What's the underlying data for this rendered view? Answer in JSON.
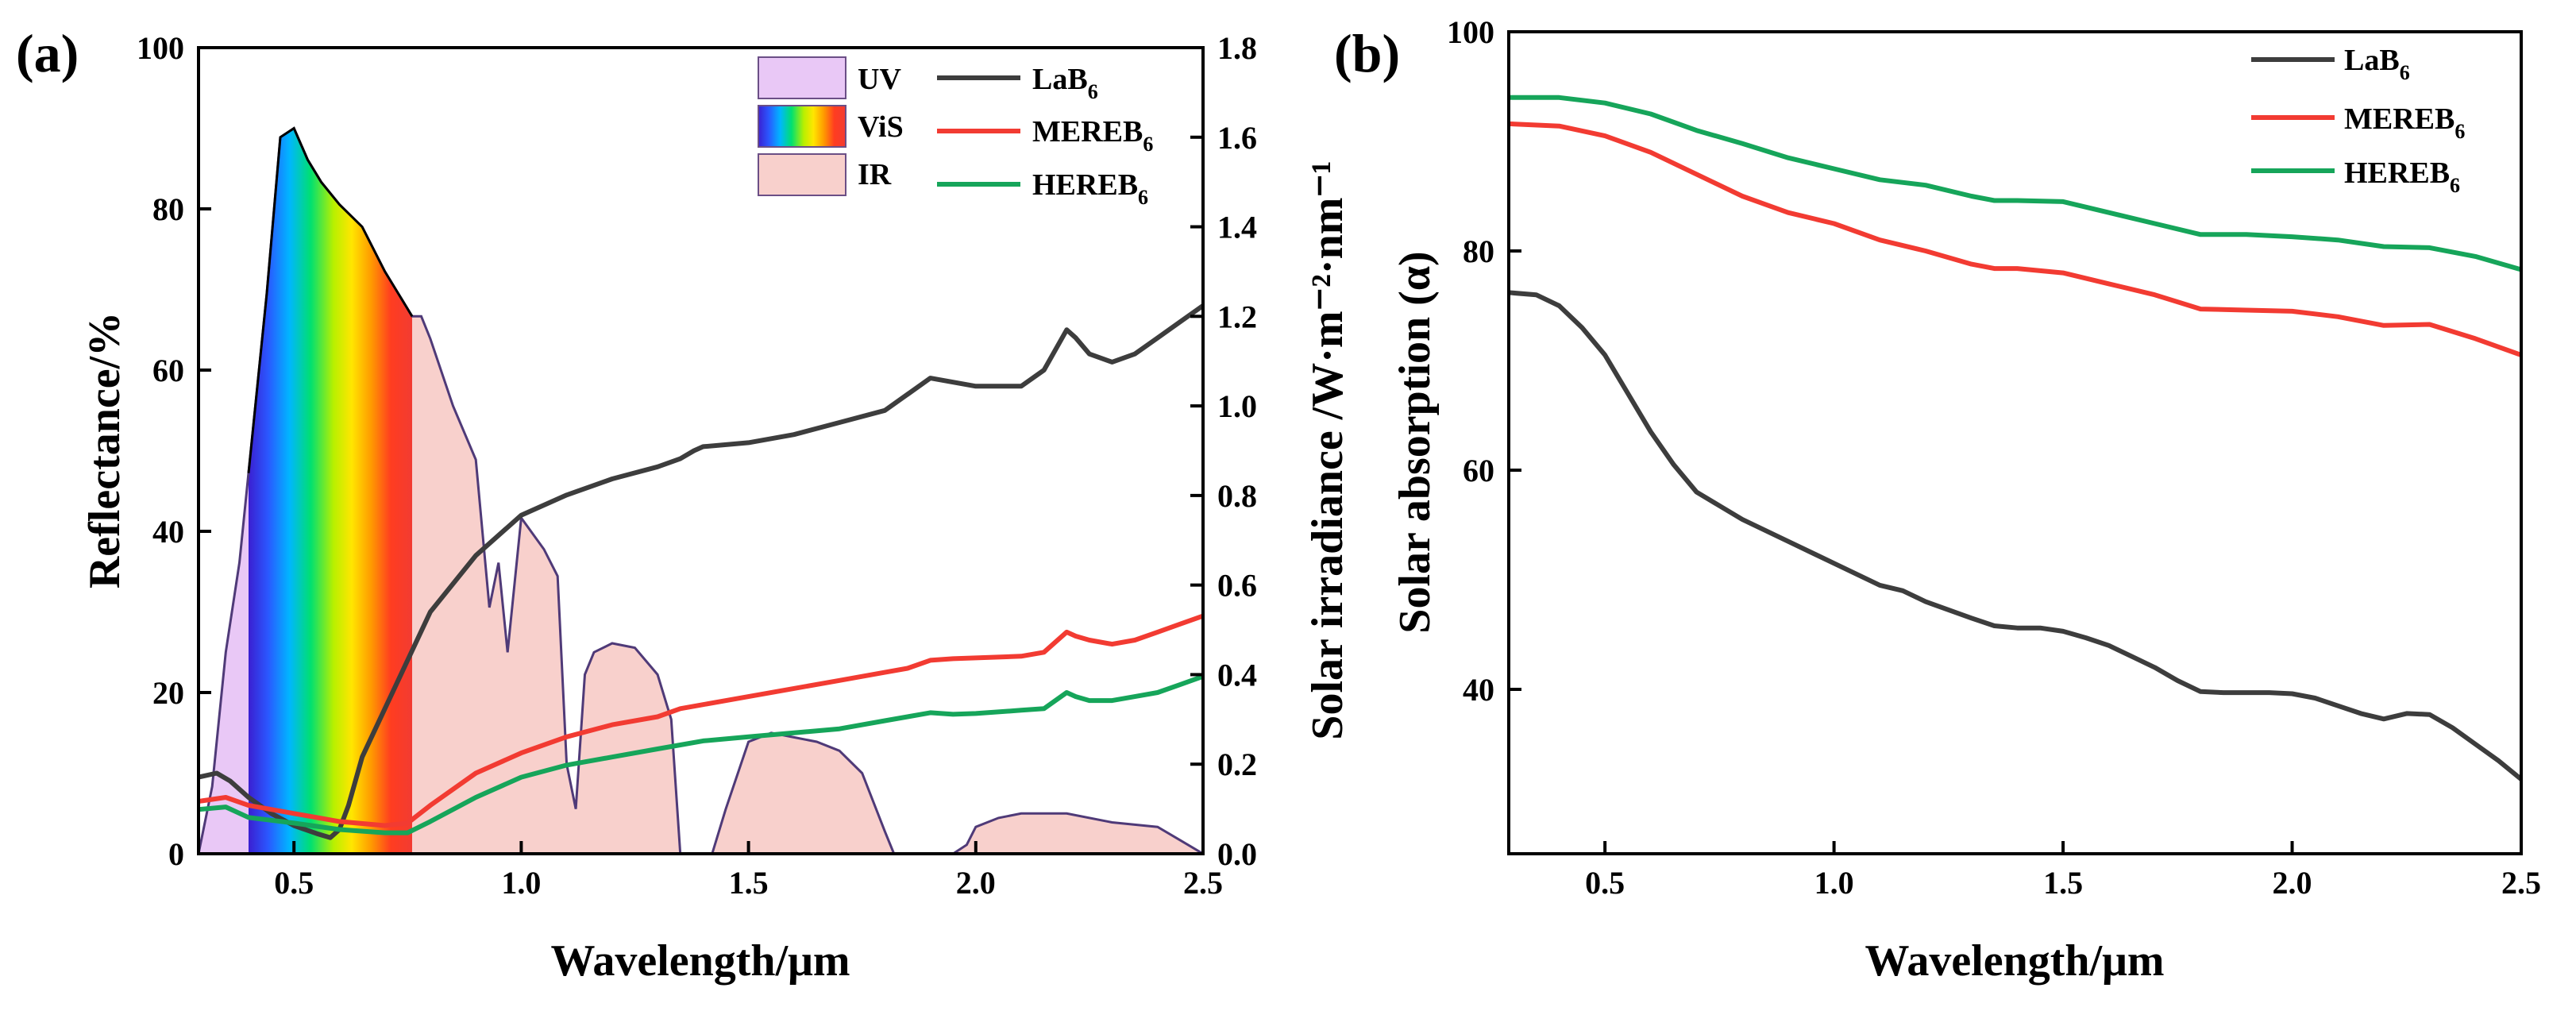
{
  "chart_data": [
    {
      "panel_label": "(a)",
      "type": "line",
      "xlabel": "Wavelength/μm",
      "ylabel": "Reflectance/%",
      "y2label": "Solar irradiance /W·m⁻²·nm⁻¹",
      "xlim": [
        0.29,
        2.5
      ],
      "ylim": [
        0,
        100
      ],
      "y2lim": [
        0,
        1.8
      ],
      "xticks": [
        0.5,
        1.0,
        1.5,
        2.0,
        2.5
      ],
      "xtick_labels": [
        "0.5",
        "1.0",
        "1.5",
        "2.0",
        "2.5"
      ],
      "yticks": [
        0,
        20,
        40,
        60,
        80,
        100
      ],
      "ytick_labels": [
        "0",
        "20",
        "40",
        "60",
        "80",
        "100"
      ],
      "y2ticks": [
        0,
        0.2,
        0.4,
        0.6,
        0.8,
        1.0,
        1.2,
        1.4,
        1.6,
        1.8
      ],
      "y2tick_labels": [
        "0.0",
        "0.2",
        "0.4",
        "0.6",
        "0.8",
        "1.0",
        "1.2",
        "1.4",
        "1.6",
        "1.8"
      ],
      "bands": [
        {
          "name": "UV",
          "range": [
            0.29,
            0.4
          ],
          "color": "#e9c8f6"
        },
        {
          "name": "ViS",
          "range": [
            0.4,
            0.76
          ],
          "color": "rainbow"
        },
        {
          "name": "IR",
          "range": [
            0.76,
            2.5
          ],
          "color": "#f8d0cc"
        }
      ],
      "irradiance_series": {
        "name": "Solar irradiance",
        "color": "#4f3a78",
        "x": [
          0.29,
          0.32,
          0.35,
          0.38,
          0.41,
          0.44,
          0.47,
          0.5,
          0.53,
          0.56,
          0.6,
          0.65,
          0.7,
          0.73,
          0.76,
          0.78,
          0.8,
          0.85,
          0.9,
          0.93,
          0.95,
          0.97,
          1.0,
          1.05,
          1.08,
          1.1,
          1.12,
          1.14,
          1.16,
          1.2,
          1.25,
          1.3,
          1.33,
          1.35,
          1.38,
          1.42,
          1.45,
          1.5,
          1.55,
          1.6,
          1.65,
          1.7,
          1.75,
          1.8,
          1.82,
          1.95,
          1.98,
          2.0,
          2.05,
          2.1,
          2.2,
          2.3,
          2.4,
          2.45,
          2.5
        ],
        "y": [
          0.0,
          0.15,
          0.45,
          0.65,
          0.95,
          1.25,
          1.6,
          1.62,
          1.55,
          1.5,
          1.45,
          1.4,
          1.3,
          1.25,
          1.2,
          1.2,
          1.15,
          1.0,
          0.88,
          0.55,
          0.65,
          0.45,
          0.75,
          0.68,
          0.62,
          0.2,
          0.1,
          0.4,
          0.45,
          0.47,
          0.46,
          0.4,
          0.3,
          0.0,
          0.0,
          0.0,
          0.1,
          0.25,
          0.27,
          0.26,
          0.25,
          0.23,
          0.18,
          0.05,
          0.0,
          0.0,
          0.02,
          0.06,
          0.08,
          0.09,
          0.09,
          0.07,
          0.06,
          0.03,
          0.0
        ]
      },
      "legend": [
        {
          "name": "LaB",
          "subscript": "6",
          "color": "#3d3d3d"
        },
        {
          "name": "MEREB",
          "subscript": "6",
          "color": "#f23b32"
        },
        {
          "name": "HEREB",
          "subscript": "6",
          "color": "#16a55a"
        }
      ],
      "series": [
        {
          "name": "LaB6",
          "color": "#3d3d3d",
          "x": [
            0.29,
            0.33,
            0.36,
            0.4,
            0.45,
            0.5,
            0.55,
            0.58,
            0.6,
            0.62,
            0.65,
            0.7,
            0.75,
            0.8,
            0.9,
            1.0,
            1.1,
            1.2,
            1.3,
            1.35,
            1.38,
            1.4,
            1.5,
            1.6,
            1.7,
            1.8,
            1.85,
            1.9,
            1.95,
            2.0,
            2.05,
            2.1,
            2.15,
            2.2,
            2.22,
            2.25,
            2.3,
            2.35,
            2.4,
            2.45,
            2.5
          ],
          "y": [
            9.5,
            10.0,
            9.0,
            7.0,
            5.0,
            3.5,
            2.5,
            2.0,
            3.0,
            6.0,
            12.0,
            18.0,
            24.0,
            30.0,
            37.0,
            42.0,
            44.5,
            46.5,
            48.0,
            49.0,
            50.0,
            50.5,
            51.0,
            52.0,
            53.5,
            55.0,
            57.0,
            59.0,
            58.5,
            58.0,
            58.0,
            58.0,
            60.0,
            65.0,
            64.0,
            62.0,
            61.0,
            62.0,
            64.0,
            66.0,
            68.0
          ]
        },
        {
          "name": "MEREB6",
          "color": "#f23b32",
          "x": [
            0.29,
            0.35,
            0.4,
            0.5,
            0.6,
            0.7,
            0.75,
            0.8,
            0.9,
            1.0,
            1.1,
            1.2,
            1.3,
            1.35,
            1.4,
            1.5,
            1.6,
            1.7,
            1.8,
            1.85,
            1.9,
            1.95,
            2.0,
            2.1,
            2.15,
            2.2,
            2.22,
            2.25,
            2.3,
            2.35,
            2.4,
            2.45,
            2.5
          ],
          "y": [
            6.5,
            7.0,
            6.0,
            5.0,
            4.0,
            3.5,
            3.8,
            6.0,
            10.0,
            12.5,
            14.5,
            16.0,
            17.0,
            18.0,
            18.5,
            19.5,
            20.5,
            21.5,
            22.5,
            23.0,
            24.0,
            24.2,
            24.3,
            24.5,
            25.0,
            27.5,
            27.0,
            26.5,
            26.0,
            26.5,
            27.5,
            28.5,
            29.5
          ]
        },
        {
          "name": "HEREB6",
          "color": "#16a55a",
          "x": [
            0.29,
            0.35,
            0.4,
            0.5,
            0.6,
            0.7,
            0.75,
            0.8,
            0.9,
            1.0,
            1.1,
            1.2,
            1.3,
            1.35,
            1.4,
            1.5,
            1.6,
            1.7,
            1.8,
            1.85,
            1.9,
            1.95,
            2.0,
            2.1,
            2.15,
            2.2,
            2.22,
            2.25,
            2.3,
            2.35,
            2.4,
            2.45,
            2.5
          ],
          "y": [
            5.5,
            5.8,
            4.5,
            3.8,
            3.0,
            2.6,
            2.6,
            4.0,
            7.0,
            9.5,
            11.0,
            12.0,
            13.0,
            13.5,
            14.0,
            14.5,
            15.0,
            15.5,
            16.5,
            17.0,
            17.5,
            17.3,
            17.4,
            17.8,
            18.0,
            20.0,
            19.5,
            19.0,
            19.0,
            19.5,
            20.0,
            21.0,
            22.0
          ]
        }
      ]
    },
    {
      "panel_label": "(b)",
      "type": "line",
      "xlabel": "Wavelength/μm",
      "ylabel": "Solar absorption (α)",
      "xlim": [
        0.29,
        2.5
      ],
      "ylim": [
        25,
        100
      ],
      "xticks": [
        0.5,
        1.0,
        1.5,
        2.0,
        2.5
      ],
      "xtick_labels": [
        "0.5",
        "1.0",
        "1.5",
        "2.0",
        "2.5"
      ],
      "yticks": [
        40,
        60,
        80,
        100
      ],
      "ytick_labels": [
        "40",
        "60",
        "80",
        "100"
      ],
      "legend": [
        {
          "name": "LaB",
          "subscript": "6",
          "color": "#3d3d3d"
        },
        {
          "name": "MEREB",
          "subscript": "6",
          "color": "#f23b32"
        },
        {
          "name": "HEREB",
          "subscript": "6",
          "color": "#16a55a"
        }
      ],
      "series": [
        {
          "name": "LaB6",
          "color": "#3d3d3d",
          "x": [
            0.29,
            0.35,
            0.4,
            0.45,
            0.5,
            0.55,
            0.6,
            0.65,
            0.7,
            0.8,
            0.9,
            1.0,
            1.1,
            1.15,
            1.2,
            1.3,
            1.35,
            1.4,
            1.45,
            1.5,
            1.55,
            1.6,
            1.65,
            1.7,
            1.75,
            1.8,
            1.85,
            1.9,
            1.95,
            2.0,
            2.05,
            2.1,
            2.15,
            2.2,
            2.25,
            2.3,
            2.35,
            2.4,
            2.45,
            2.5
          ],
          "y": [
            76.2,
            76.0,
            75.0,
            73.0,
            70.5,
            67.0,
            63.5,
            60.5,
            58.0,
            55.5,
            53.5,
            51.5,
            49.5,
            49.0,
            48.0,
            46.5,
            45.8,
            45.6,
            45.6,
            45.3,
            44.7,
            44.0,
            43.0,
            42.0,
            40.8,
            39.8,
            39.7,
            39.7,
            39.7,
            39.6,
            39.2,
            38.5,
            37.8,
            37.3,
            37.8,
            37.7,
            36.5,
            35.0,
            33.5,
            31.8
          ]
        },
        {
          "name": "MEREB6",
          "color": "#f23b32",
          "x": [
            0.29,
            0.4,
            0.5,
            0.6,
            0.7,
            0.8,
            0.9,
            1.0,
            1.1,
            1.2,
            1.3,
            1.35,
            1.4,
            1.5,
            1.6,
            1.7,
            1.8,
            1.9,
            2.0,
            2.1,
            2.2,
            2.3,
            2.4,
            2.5
          ],
          "y": [
            91.6,
            91.4,
            90.5,
            89.0,
            87.0,
            85.0,
            83.5,
            82.5,
            81.0,
            80.0,
            78.8,
            78.4,
            78.4,
            78.0,
            77.0,
            76.0,
            74.7,
            74.6,
            74.5,
            74.0,
            73.2,
            73.3,
            72.0,
            70.5
          ]
        },
        {
          "name": "HEREB6",
          "color": "#16a55a",
          "x": [
            0.29,
            0.4,
            0.5,
            0.6,
            0.7,
            0.8,
            0.9,
            1.0,
            1.1,
            1.2,
            1.3,
            1.35,
            1.4,
            1.5,
            1.6,
            1.7,
            1.8,
            1.9,
            2.0,
            2.1,
            2.2,
            2.3,
            2.4,
            2.5
          ],
          "y": [
            94.0,
            94.0,
            93.5,
            92.5,
            91.0,
            89.8,
            88.5,
            87.5,
            86.5,
            86.0,
            85.0,
            84.6,
            84.6,
            84.5,
            83.5,
            82.5,
            81.5,
            81.5,
            81.3,
            81.0,
            80.4,
            80.3,
            79.5,
            78.3
          ]
        }
      ]
    }
  ]
}
